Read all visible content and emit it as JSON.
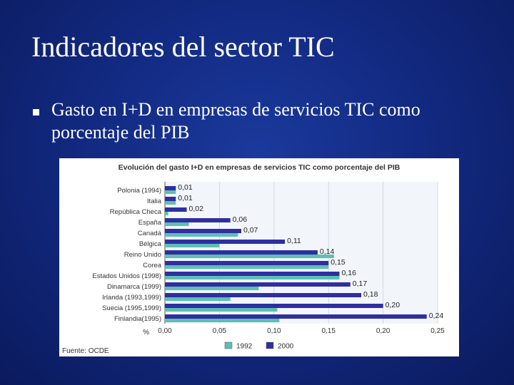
{
  "slide": {
    "title": "Indicadores del sector TIC",
    "bullet": "Gasto en I+D en empresas de servicios TIC como porcentaje del PIB"
  },
  "chart_data": {
    "type": "bar",
    "orientation": "horizontal",
    "title": "Evolución del gasto I+D en empresas de servicios TIC como porcentaje del PIB",
    "source": "Fuente: OCDE",
    "xlabel": "%",
    "xlim": [
      0,
      0.25
    ],
    "xticks": [
      "0,00",
      "0,05",
      "0,10",
      "0,15",
      "0,20",
      "0,25"
    ],
    "grid": true,
    "legend_position": "bottom",
    "categories": [
      "Polonia (1994)",
      "Italia",
      "República Checa",
      "España",
      "Canadá",
      "Bélgica",
      "Reino Unido",
      "Corea",
      "Estados Unidos (1998)",
      "Dinamarca (1999)",
      "Irlanda (1993,1999)",
      "Suecia (1995,1999)",
      "Finlandia(1995)"
    ],
    "series": [
      {
        "name": "1992",
        "color": "#5cc0b4",
        "values": [
          0.01,
          0.01,
          0.003,
          0.022,
          0.067,
          0.05,
          0.155,
          0.15,
          0.16,
          0.086,
          0.06,
          0.103,
          0.105
        ]
      },
      {
        "name": "2000",
        "color": "#2e2fa0",
        "values": [
          0.01,
          0.01,
          0.02,
          0.06,
          0.07,
          0.11,
          0.14,
          0.15,
          0.16,
          0.17,
          0.18,
          0.2,
          0.24
        ]
      }
    ],
    "data_labels": [
      "0,01",
      "0,01",
      "0,02",
      "0,06",
      "0,07",
      "0,11",
      "0,14",
      "0,15",
      "0,16",
      "0,17",
      "0,18",
      "0,20",
      "0,24"
    ]
  }
}
